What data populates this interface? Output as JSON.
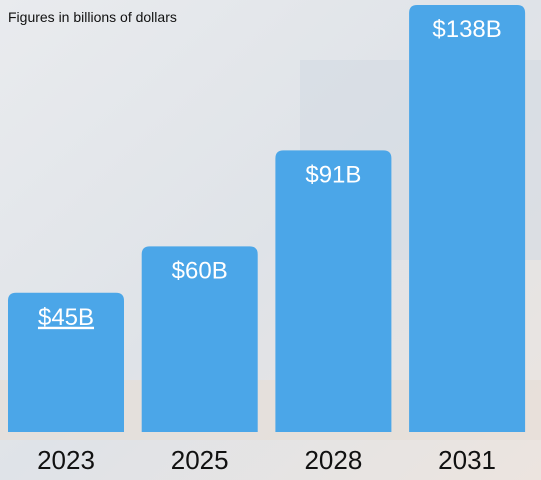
{
  "chart_data": {
    "type": "bar",
    "subtitle": "Figures in billions of dollars",
    "categories": [
      "2023",
      "2025",
      "2028",
      "2031"
    ],
    "values": [
      45,
      60,
      91,
      138
    ],
    "value_labels": [
      "$45B",
      "$60B",
      "$91B",
      "$138B"
    ],
    "color": "#4ba6e8"
  }
}
